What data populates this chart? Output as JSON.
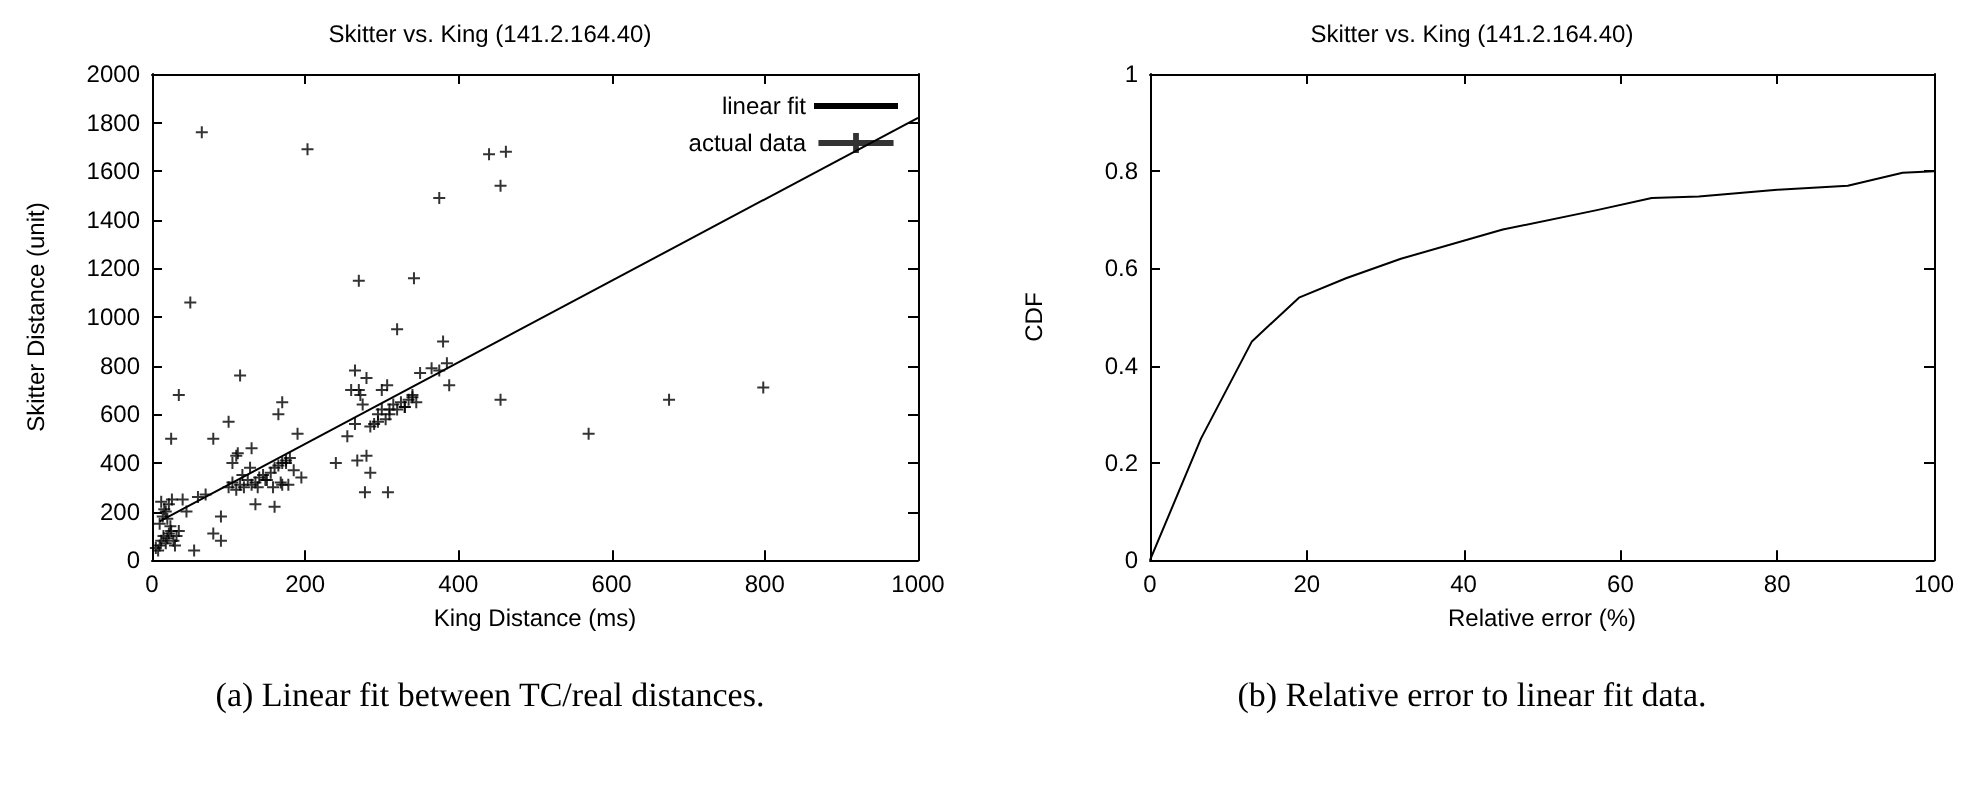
{
  "chart_data": [
    {
      "type": "scatter",
      "title": "Skitter vs. King (141.2.164.40)",
      "xlabel": "King Distance (ms)",
      "ylabel": "Skitter Distance (unit)",
      "xlim": [
        0,
        1000
      ],
      "xticks": [
        0,
        200,
        400,
        600,
        800,
        1000
      ],
      "ylim": [
        0,
        2000
      ],
      "yticks": [
        0,
        200,
        400,
        600,
        800,
        1000,
        1200,
        1400,
        1600,
        1800,
        2000
      ],
      "grid": false,
      "legend": "top right",
      "annotations": [
        "(a) Linear fit between TC/real distances."
      ],
      "series": [
        {
          "name": "linear fit",
          "type": "line",
          "color": "#000000",
          "marker": "none",
          "line_style": "solid",
          "x": [
            10,
            1000
          ],
          "values": [
            160,
            1820
          ]
        },
        {
          "name": "actual data",
          "color": "#000000",
          "marker": "cross",
          "x": [
            65,
            203,
            440,
            462,
            455,
            375,
            270,
            342,
            50,
            320,
            380,
            115,
            35,
            25,
            80,
            100,
            570,
            675,
            798,
            455,
            278,
            308,
            268,
            240,
            195,
            90,
            80,
            90,
            55,
            170,
            165,
            190,
            265,
            280,
            300,
            307,
            365,
            385,
            388,
            350,
            375,
            260,
            272,
            255,
            265,
            5,
            8,
            10,
            12,
            15,
            18,
            20,
            22,
            25,
            28,
            30,
            32,
            35,
            10,
            14,
            18,
            22,
            26,
            12,
            16,
            20,
            24,
            40,
            45,
            60,
            70,
            100,
            105,
            110,
            115,
            120,
            125,
            130,
            135,
            140,
            145,
            150,
            155,
            160,
            165,
            170,
            175,
            180,
            105,
            112,
            118,
            128,
            138,
            148,
            158,
            168,
            178,
            185,
            110,
            130,
            135,
            160,
            170,
            175,
            280,
            285,
            290,
            295,
            300,
            305,
            310,
            315,
            320,
            325,
            330,
            335,
            340,
            345,
            270,
            275,
            285,
            295,
            310,
            330,
            340
          ],
          "values": [
            1760,
            1690,
            1670,
            1680,
            1540,
            1490,
            1150,
            1160,
            1060,
            950,
            900,
            760,
            680,
            500,
            500,
            570,
            520,
            660,
            710,
            660,
            280,
            280,
            410,
            400,
            340,
            80,
            110,
            180,
            40,
            650,
            600,
            520,
            780,
            750,
            700,
            720,
            790,
            810,
            720,
            770,
            780,
            700,
            680,
            510,
            560,
            50,
            40,
            60,
            80,
            100,
            70,
            90,
            110,
            120,
            80,
            60,
            100,
            120,
            150,
            180,
            200,
            230,
            250,
            240,
            210,
            170,
            140,
            250,
            200,
            260,
            270,
            300,
            320,
            290,
            310,
            300,
            330,
            310,
            320,
            340,
            350,
            330,
            360,
            380,
            390,
            400,
            410,
            420,
            400,
            440,
            350,
            380,
            300,
            330,
            300,
            320,
            310,
            370,
            430,
            460,
            230,
            220,
            310,
            400,
            430,
            360,
            560,
            600,
            620,
            580,
            600,
            640,
            620,
            650,
            630,
            660,
            680,
            650,
            700,
            640,
            550,
            570,
            620,
            630,
            670
          ]
        }
      ]
    },
    {
      "type": "line",
      "title": "Skitter vs. King (141.2.164.40)",
      "xlabel": "Relative error (%)",
      "ylabel": "CDF",
      "xlim": [
        0,
        100
      ],
      "xticks": [
        0,
        20,
        40,
        60,
        80,
        100
      ],
      "ylim": [
        0,
        1
      ],
      "yticks": [
        0,
        0.2,
        0.4,
        0.6,
        0.8,
        1
      ],
      "grid": false,
      "annotations": [
        "(b) Relative error to linear fit data."
      ],
      "series": [
        {
          "color": "#000000",
          "marker": "none",
          "line_style": "solid",
          "x": [
            0,
            6.5,
            13,
            19,
            25,
            32,
            45,
            57,
            64,
            70,
            80,
            89,
            96,
            100
          ],
          "values": [
            0,
            0.25,
            0.45,
            0.54,
            0.58,
            0.62,
            0.68,
            0.72,
            0.745,
            0.748,
            0.762,
            0.77,
            0.797,
            0.8
          ]
        }
      ]
    }
  ]
}
